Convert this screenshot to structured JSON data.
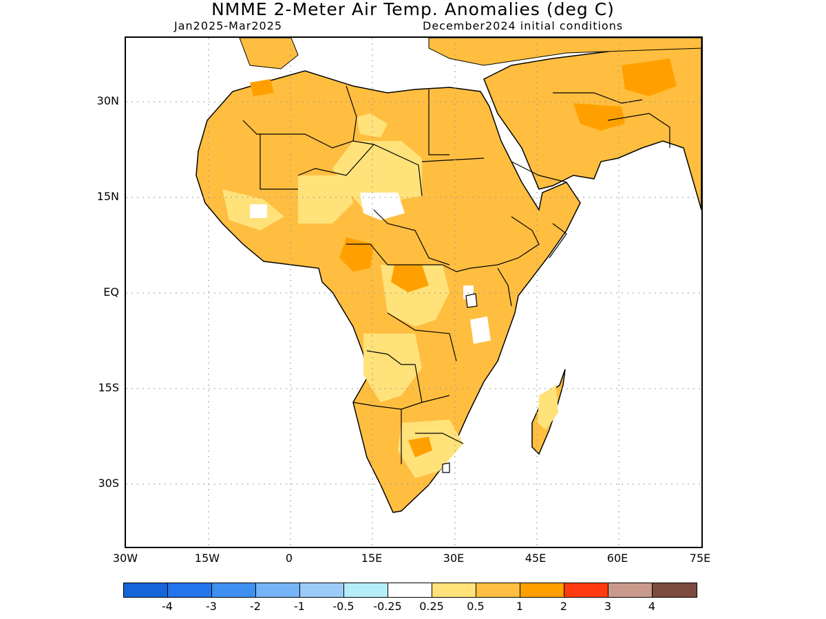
{
  "title": "NMME 2-Meter Air Temp. Anomalies (deg C)",
  "subtitle_left": "Jan2025-Mar2025",
  "subtitle_right": "December2024 initial conditions",
  "lat_labels": [
    "30N",
    "15N",
    "EQ",
    "15S",
    "30S"
  ],
  "lon_labels": [
    "30W",
    "15W",
    "0",
    "15E",
    "30E",
    "45E",
    "60E",
    "75E"
  ],
  "colorbar": {
    "colors": [
      "#1565d8",
      "#2474ec",
      "#3d8ff0",
      "#75b4f6",
      "#9ccbf8",
      "#b5eef8",
      "#ffffff",
      "#ffe27a",
      "#ffbe40",
      "#ffa000",
      "#ff3a10",
      "#c99a8c",
      "#7a4b3e"
    ],
    "labels": [
      "-4",
      "-3",
      "-2",
      "-1",
      "-0.5",
      "-0.25",
      "0.25",
      "0.5",
      "1",
      "2",
      "3",
      "4"
    ]
  },
  "map_colors": {
    "land_background": "#ffbe40",
    "weak_anomaly": "#ffe27a",
    "strong_anomaly": "#ffa000",
    "near_zero": "#ffffff",
    "coastline": "#000000"
  }
}
